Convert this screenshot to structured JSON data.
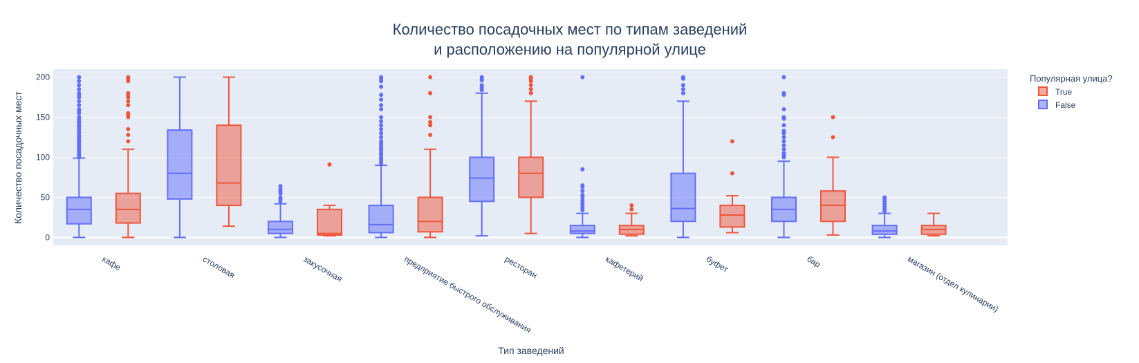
{
  "chart_data": {
    "type": "box",
    "title_lines": [
      "Количество посадочных мест по типам заведений",
      "и расположению на популярной улице"
    ],
    "xlabel": "Тип заведений",
    "ylabel": "Количество посадочных мест",
    "ylim": [
      -10,
      210
    ],
    "yticks": [
      0,
      50,
      100,
      150,
      200
    ],
    "categories": [
      "кафе",
      "столовая",
      "закусочная",
      "предприятие быстрого обслуживания",
      "ресторан",
      "кафетерий",
      "буфет",
      "бар",
      "магазин (отдел кулинарии)"
    ],
    "legend": {
      "title": "Популярная улица?",
      "placement": "top-right"
    },
    "series": [
      {
        "name": "False",
        "color": "#636efa",
        "fill": "rgba(99,110,250,0.5)",
        "boxes": [
          {
            "min": 0,
            "q1": 17,
            "median": 35,
            "q3": 50,
            "max": 99,
            "outliers": [
              100,
              101,
              103,
              105,
              108,
              110,
              112,
              115,
              118,
              120,
              122,
              125,
              127,
              130,
              132,
              135,
              138,
              140,
              143,
              145,
              148,
              150,
              155,
              158,
              160,
              165,
              170,
              175,
              178,
              180,
              185,
              190,
              195,
              200
            ]
          },
          {
            "min": 0,
            "q1": 48,
            "median": 80,
            "q3": 134,
            "max": 200,
            "outliers": []
          },
          {
            "min": 0,
            "q1": 5,
            "median": 10,
            "q3": 20,
            "max": 42,
            "outliers": [
              45,
              48,
              50,
              55,
              58,
              60,
              64
            ]
          },
          {
            "min": 0,
            "q1": 6,
            "median": 16,
            "q3": 40,
            "max": 90,
            "outliers": [
              92,
              95,
              98,
              100,
              103,
              105,
              108,
              110,
              112,
              115,
              118,
              120,
              125,
              130,
              135,
              140,
              145,
              150,
              160,
              165,
              172,
              178,
              188,
              195,
              198,
              200
            ]
          },
          {
            "min": 2,
            "q1": 45,
            "median": 74,
            "q3": 100,
            "max": 180,
            "outliers": [
              184,
              186,
              188,
              190,
              196,
              198,
              200
            ]
          },
          {
            "min": 0,
            "q1": 5,
            "median": 8,
            "q3": 15,
            "max": 30,
            "outliers": [
              34,
              37,
              40,
              43,
              46,
              50,
              53,
              58,
              63,
              65,
              85,
              200
            ]
          },
          {
            "min": 0,
            "q1": 20,
            "median": 36,
            "q3": 80,
            "max": 170,
            "outliers": [
              180,
              185,
              190,
              198,
              200
            ]
          },
          {
            "min": 0,
            "q1": 20,
            "median": 35,
            "q3": 50,
            "max": 95,
            "outliers": [
              100,
              102,
              105,
              110,
              115,
              120,
              125,
              130,
              133,
              140,
              148,
              150,
              160,
              178,
              180,
              200
            ]
          },
          {
            "min": 0,
            "q1": 4,
            "median": 8,
            "q3": 15,
            "max": 30,
            "outliers": [
              33,
              36,
              39,
              42,
              45,
              48,
              50
            ]
          }
        ]
      },
      {
        "name": "True",
        "color": "#ef553b",
        "fill": "rgba(239,85,59,0.5)",
        "boxes": [
          {
            "min": 0,
            "q1": 18,
            "median": 35,
            "q3": 55,
            "max": 110,
            "outliers": [
              120,
              128,
              135,
              150,
              153,
              155,
              165,
              170,
              175,
              178,
              180,
              195,
              198,
              200
            ]
          },
          {
            "min": 14,
            "q1": 40,
            "median": 68,
            "q3": 140,
            "max": 200,
            "outliers": []
          },
          {
            "min": 2,
            "q1": 3,
            "median": 5,
            "q3": 35,
            "max": 40,
            "outliers": [
              91
            ]
          },
          {
            "min": 0,
            "q1": 7,
            "median": 20,
            "q3": 50,
            "max": 110,
            "outliers": [
              128,
              140,
              144,
              150,
              180,
              200
            ]
          },
          {
            "min": 5,
            "q1": 50,
            "median": 80,
            "q3": 100,
            "max": 170,
            "outliers": [
              180,
              185,
              190,
              195,
              198,
              200
            ]
          },
          {
            "min": 2,
            "q1": 4,
            "median": 10,
            "q3": 15,
            "max": 30,
            "outliers": [
              35,
              40
            ]
          },
          {
            "min": 6,
            "q1": 13,
            "median": 28,
            "q3": 40,
            "max": 52,
            "outliers": [
              80,
              120
            ]
          },
          {
            "min": 3,
            "q1": 20,
            "median": 40,
            "q3": 58,
            "max": 100,
            "outliers": [
              125,
              150
            ]
          },
          {
            "min": 2,
            "q1": 4,
            "median": 10,
            "q3": 15,
            "max": 30,
            "outliers": []
          }
        ]
      }
    ]
  }
}
